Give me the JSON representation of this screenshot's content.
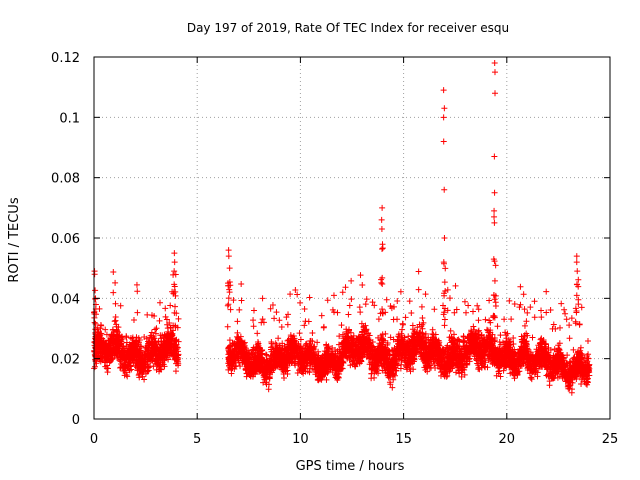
{
  "chart_data": {
    "type": "scatter",
    "title": "Day 197 of 2019, Rate Of TEC Index for receiver esqu",
    "xlabel": "GPS time / hours",
    "ylabel": "ROTI / TECUs",
    "xlim": [
      0,
      25
    ],
    "ylim": [
      0,
      0.12
    ],
    "xticks": [
      0,
      5,
      10,
      15,
      20,
      25
    ],
    "yticks": [
      0,
      0.02,
      0.04,
      0.06,
      0.08,
      0.1,
      0.12
    ],
    "xtick_labels": [
      "0",
      "5",
      "10",
      "15",
      "20",
      "25"
    ],
    "ytick_labels": [
      "0",
      "0.02",
      "0.04",
      "0.06",
      "0.08",
      "0.1",
      "0.12"
    ],
    "grid": true,
    "marker": "+",
    "color": "#ff0000",
    "segments": [
      {
        "start": 0.0,
        "end": 4.1,
        "base": 0.022,
        "spread": 0.009
      },
      {
        "start": 6.5,
        "end": 12.0,
        "base": 0.02,
        "spread": 0.008
      },
      {
        "start": 12.0,
        "end": 16.0,
        "base": 0.022,
        "spread": 0.009
      },
      {
        "start": 16.0,
        "end": 21.0,
        "base": 0.022,
        "spread": 0.009
      },
      {
        "start": 21.0,
        "end": 24.0,
        "base": 0.018,
        "spread": 0.008
      }
    ],
    "spikes": [
      {
        "x": 0.05,
        "values": [
          0.049,
          0.048,
          0.04
        ]
      },
      {
        "x": 3.9,
        "values": [
          0.055,
          0.052,
          0.049
        ]
      },
      {
        "x": 6.55,
        "values": [
          0.056,
          0.054,
          0.05
        ]
      },
      {
        "x": 13.95,
        "values": [
          0.07,
          0.066,
          0.063
        ]
      },
      {
        "x": 16.95,
        "values": [
          0.109,
          0.103,
          0.1,
          0.092,
          0.076,
          0.06,
          0.052
        ]
      },
      {
        "x": 19.4,
        "values": [
          0.118,
          0.115,
          0.108,
          0.087,
          0.075,
          0.069,
          0.067,
          0.065,
          0.053
        ]
      },
      {
        "x": 23.4,
        "values": [
          0.054,
          0.052,
          0.049
        ]
      }
    ]
  }
}
